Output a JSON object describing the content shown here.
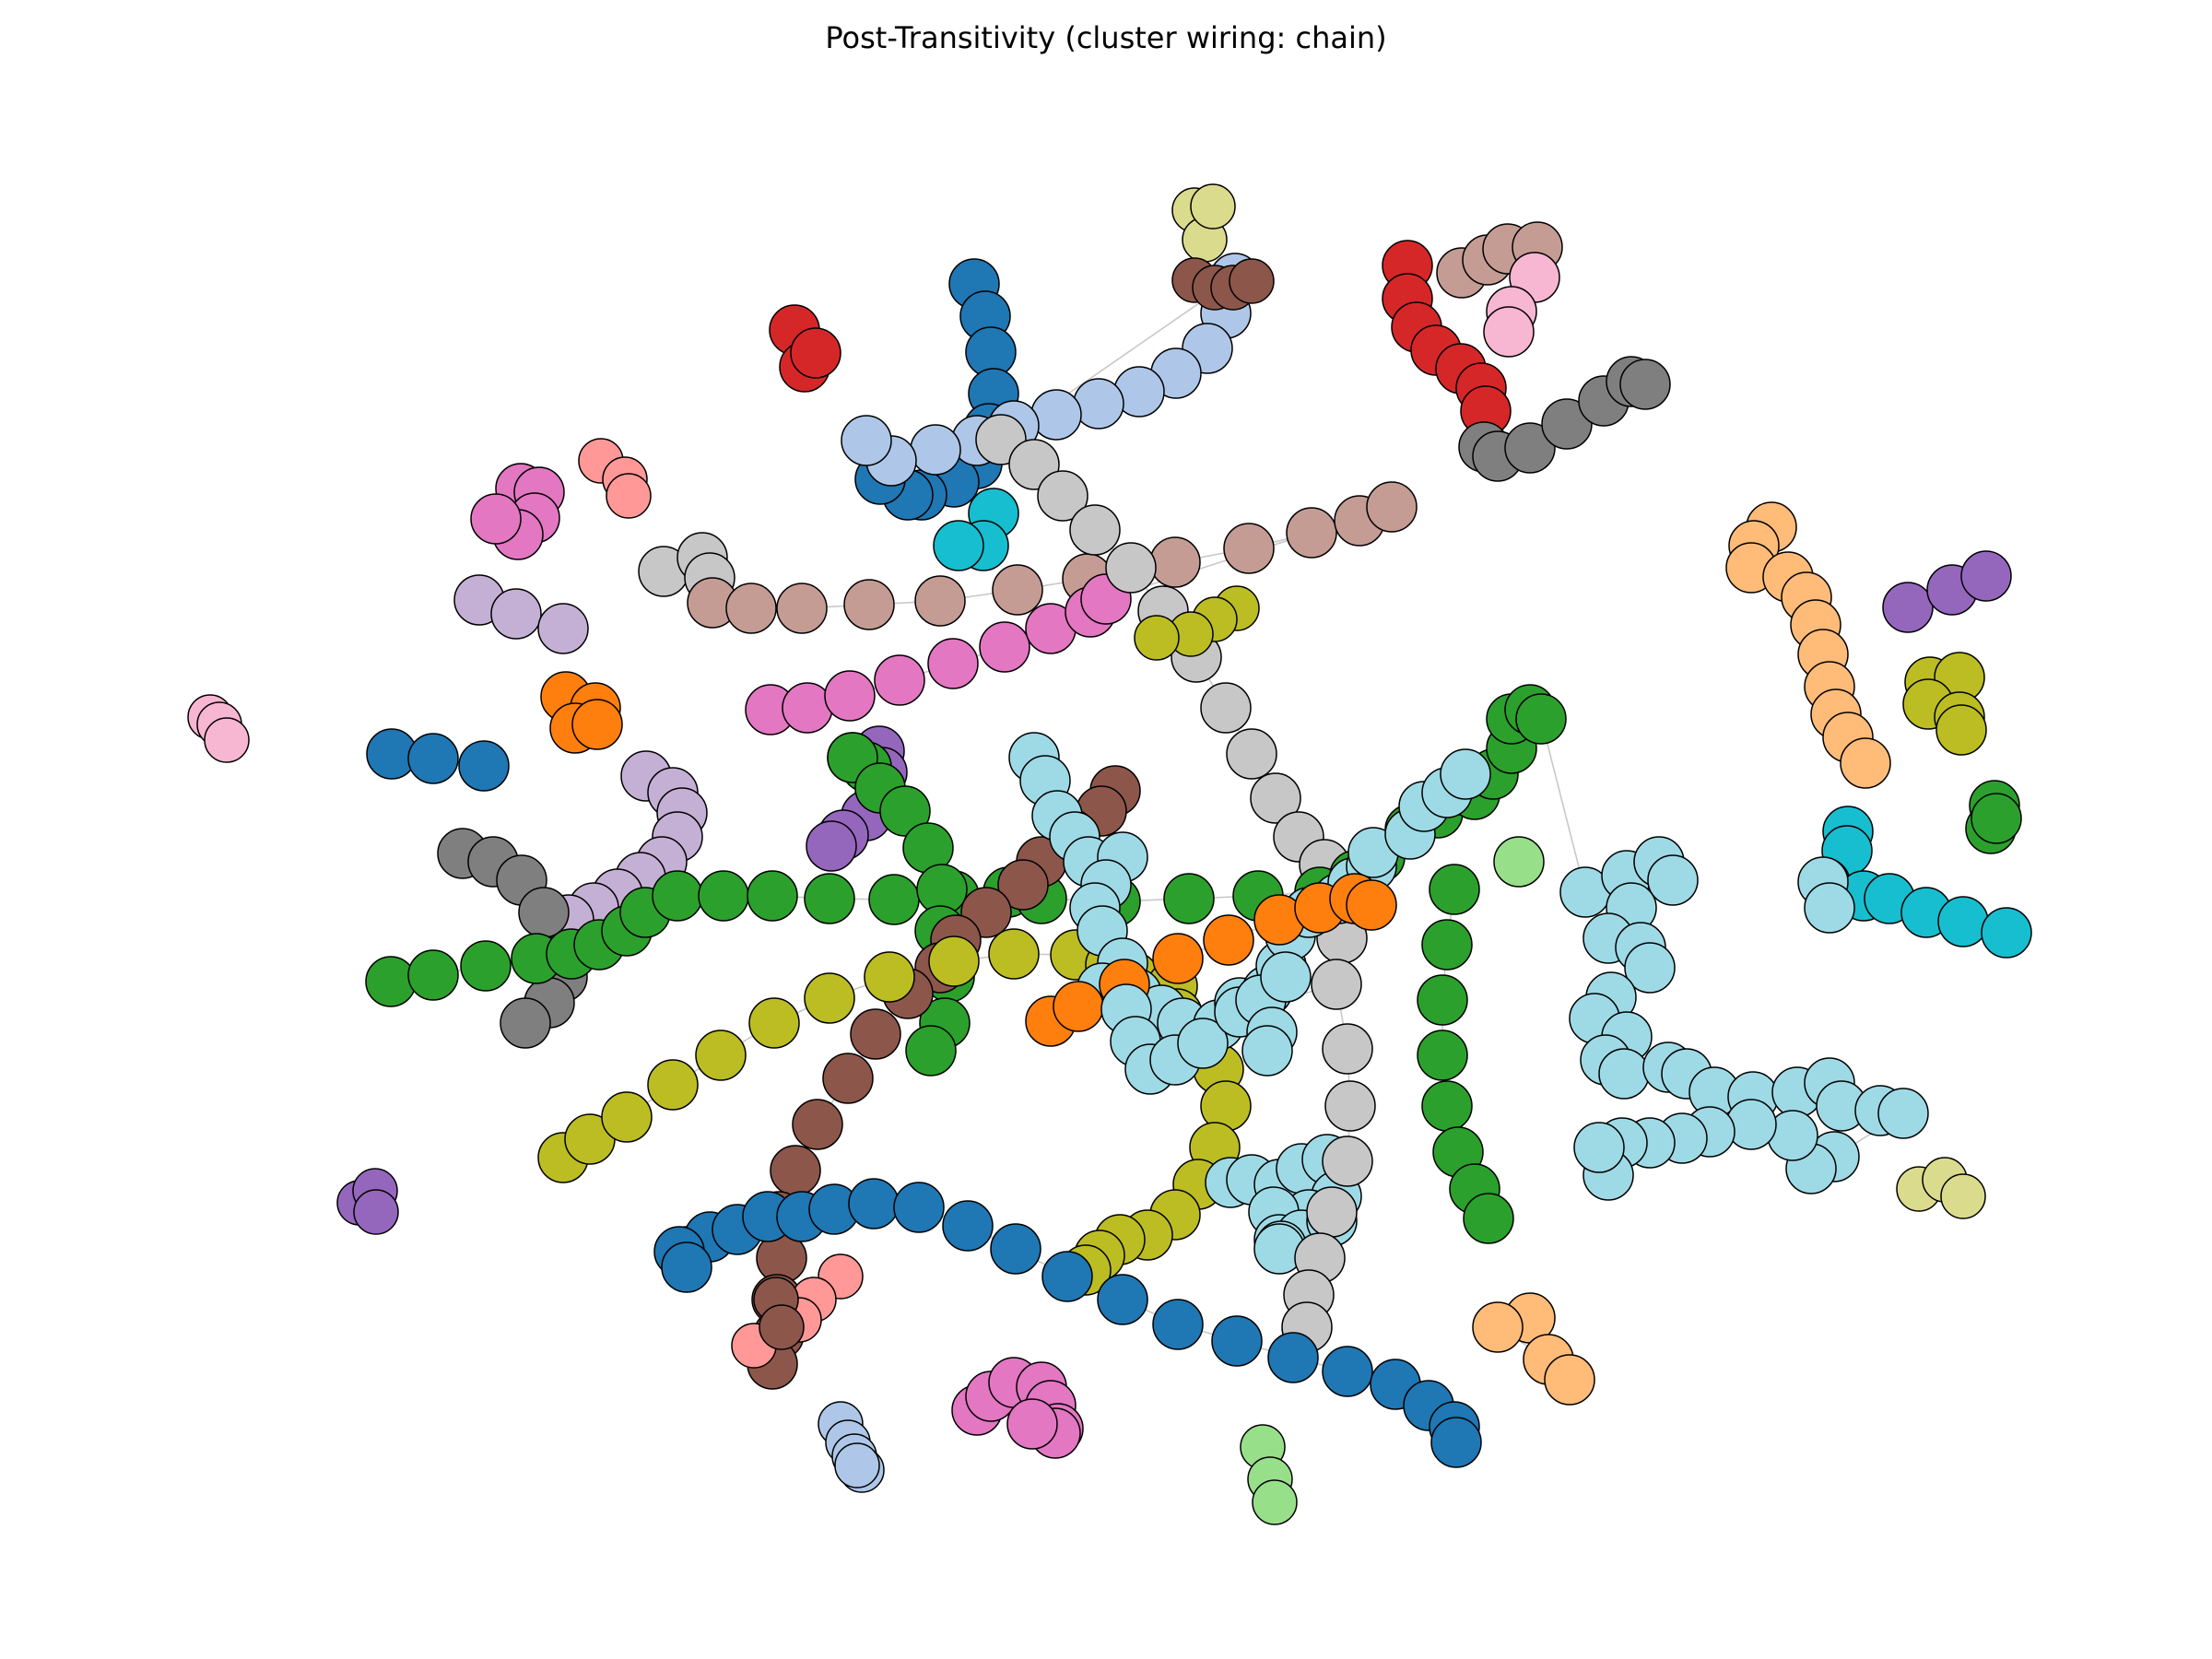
{
  "title": "Post-Transitivity (cluster wiring: chain)",
  "palette": {
    "blue": "#1f77b4",
    "lightblue": "#aec7e8",
    "orange": "#ff7f0e",
    "peach": "#ffbb78",
    "green": "#2ca02c",
    "lightgreen": "#98df8a",
    "red": "#d62728",
    "salmon": "#ff9896",
    "purple": "#9467bd",
    "lavender": "#c5b0d5",
    "brown": "#8c564b",
    "rosybrown": "#c49c94",
    "pink": "#e377c2",
    "lightpink": "#f7b6d2",
    "gray": "#7f7f7f",
    "silver": "#c7c7c7",
    "olive": "#bcbd22",
    "khaki": "#dbdb8d",
    "cyan": "#17becf",
    "skyblue": "#9edae5"
  }
}
